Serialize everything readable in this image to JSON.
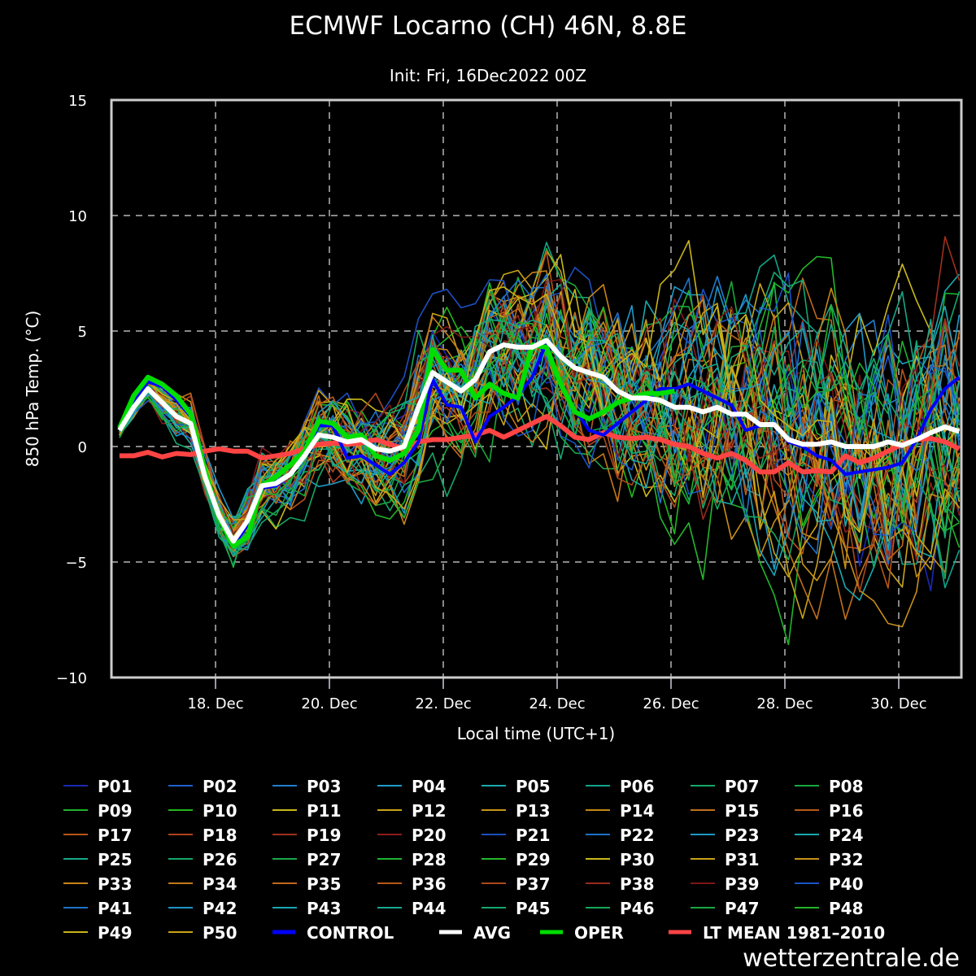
{
  "chart_data": {
    "type": "line",
    "title": "ECMWF Locarno (CH) 46N, 8.8E",
    "subtitle": "Init: Fri, 16Dec2022 00Z",
    "xlabel": "Local time (UTC+1)",
    "ylabel": "850 hPa Temp. (°C)",
    "ylim": [
      -10,
      15
    ],
    "yticks": [
      -10,
      -5,
      0,
      5,
      10,
      15
    ],
    "ytick_labels": [
      "−10",
      "−5",
      "0",
      "5",
      "10",
      "15"
    ],
    "x_start": "16 Dec 07:00",
    "x_step_hours": 6,
    "x_start_day_offset": -1.6875,
    "xticks_day_offset": [
      0,
      2,
      4,
      6,
      8,
      10,
      12
    ],
    "xtick_labels": [
      "18. Dec",
      "20. Dec",
      "22. Dec",
      "24. Dec",
      "26. Dec",
      "28. Dec",
      "30. Dec"
    ],
    "grid": true,
    "legend_position": "bottom",
    "members_count": 50,
    "member_colors": [
      "#1a2ab5",
      "#1f5fd0",
      "#1f7ed0",
      "#1e9cc9",
      "#1aa9b0",
      "#12a48a",
      "#14a868",
      "#18a83a",
      "#1fb52a",
      "#21b81c",
      "#c9b81a",
      "#c8a41a",
      "#c89616",
      "#c48818",
      "#c0701a",
      "#b85a1a",
      "#b8541a",
      "#b4401e",
      "#a0301e",
      "#8c1c1c",
      "#1d4fc0",
      "#1e72c8",
      "#1e98c8",
      "#1aa8b0",
      "#16a888",
      "#14a86c",
      "#18a84a",
      "#1db431",
      "#22b82a",
      "#c8b81a",
      "#c8a018",
      "#c89018",
      "#c88418",
      "#c47818",
      "#c06818",
      "#b85818",
      "#ac481c",
      "#982a1c",
      "#7c1616",
      "#1a54c4",
      "#1e74c8",
      "#1e94c8",
      "#1aa6b4",
      "#16a890",
      "#14a870",
      "#14a85c",
      "#18a840",
      "#22b426",
      "#c8b418",
      "#c8a418"
    ],
    "series": [
      {
        "name": "CONTROL",
        "color": "#0000ff",
        "values": [
          0.9,
          1.9,
          2.8,
          2.6,
          2.0,
          1.3,
          -1.0,
          -3.0,
          -4.3,
          -3.4,
          -1.8,
          -1.7,
          -1.2,
          -0.4,
          0.9,
          0.9,
          -0.5,
          -0.4,
          -0.8,
          -1.2,
          -0.7,
          0.2,
          2.9,
          1.8,
          1.7,
          0.2,
          1.3,
          1.7,
          2.2,
          3.0,
          4.5,
          2.6,
          1.6,
          0.7,
          0.5,
          1.0,
          1.5,
          2.0,
          2.5,
          2.5,
          2.7,
          2.4,
          2.1,
          1.8,
          0.7,
          0.9,
          1.0,
          0.2,
          0.0,
          -0.4,
          -0.6,
          -1.2,
          -1.1,
          -1.0,
          -0.9,
          -0.7,
          0.3,
          1.6,
          2.5,
          3.0
        ]
      },
      {
        "name": "AVG",
        "color": "#ffffff",
        "values": [
          0.7,
          1.7,
          2.5,
          1.9,
          1.3,
          1.0,
          -1.3,
          -3.0,
          -4.1,
          -3.2,
          -1.7,
          -1.6,
          -1.2,
          -0.4,
          0.5,
          0.4,
          0.2,
          0.3,
          -0.1,
          -0.2,
          0.0,
          1.7,
          3.2,
          2.8,
          2.4,
          2.9,
          4.1,
          4.4,
          4.3,
          4.3,
          4.6,
          3.9,
          3.4,
          3.2,
          3.0,
          2.4,
          2.1,
          2.1,
          2.0,
          1.7,
          1.7,
          1.5,
          1.7,
          1.4,
          1.4,
          0.95,
          0.95,
          0.3,
          0.1,
          0.1,
          0.2,
          0.0,
          0.0,
          0.0,
          0.2,
          0.05,
          0.3,
          0.6,
          0.85,
          0.65
        ]
      },
      {
        "name": "OPER",
        "color": "#00dd00",
        "values": [
          0.8,
          2.2,
          3.0,
          2.7,
          2.2,
          1.4,
          -1.0,
          -3.1,
          -4.3,
          -3.9,
          -1.7,
          -1.3,
          -0.8,
          -0.2,
          1.1,
          1.0,
          0.4,
          0.5,
          -0.4,
          -0.6,
          -0.3,
          0.7,
          4.2,
          3.3,
          3.3,
          2.1,
          2.7,
          2.3,
          2.1,
          4.4,
          4.3,
          2.7,
          1.5,
          1.2,
          1.5,
          1.9,
          2.1,
          2.3,
          2.3,
          2.4
        ]
      },
      {
        "name": "LT MEAN 1981-2010",
        "color": "#ff4444",
        "values": [
          -0.4,
          -0.4,
          -0.25,
          -0.45,
          -0.3,
          -0.35,
          -0.2,
          -0.1,
          -0.2,
          -0.2,
          -0.5,
          -0.4,
          -0.3,
          -0.1,
          0.1,
          0.15,
          0.1,
          0.15,
          0.3,
          0.1,
          -0.1,
          0.2,
          0.3,
          0.3,
          0.4,
          0.5,
          0.7,
          0.4,
          0.7,
          1.0,
          1.3,
          0.9,
          0.4,
          0.3,
          0.6,
          0.4,
          0.35,
          0.4,
          0.3,
          0.1,
          0.0,
          -0.3,
          -0.5,
          -0.3,
          -0.6,
          -1.1,
          -1.1,
          -0.7,
          -1.1,
          -1.05,
          -1.1,
          -0.4,
          -0.7,
          -0.5,
          -0.2,
          0.1,
          0.3,
          0.35,
          0.2,
          -0.1
        ]
      }
    ]
  },
  "legend": {
    "members": [
      "P01",
      "P02",
      "P03",
      "P04",
      "P05",
      "P06",
      "P07",
      "P08",
      "P09",
      "P10",
      "P11",
      "P12",
      "P13",
      "P14",
      "P15",
      "P16",
      "P17",
      "P18",
      "P19",
      "P20",
      "P21",
      "P22",
      "P23",
      "P24",
      "P25",
      "P26",
      "P27",
      "P28",
      "P29",
      "P30",
      "P31",
      "P32",
      "P33",
      "P34",
      "P35",
      "P36",
      "P37",
      "P38",
      "P39",
      "P40",
      "P41",
      "P42",
      "P43",
      "P44",
      "P45",
      "P46",
      "P47",
      "P48",
      "P49",
      "P50"
    ],
    "special": [
      {
        "label": "CONTROL",
        "color": "#0000ff"
      },
      {
        "label": "AVG",
        "color": "#ffffff"
      },
      {
        "label": "OPER",
        "color": "#00dd00"
      },
      {
        "label": "LT MEAN 1981–2010",
        "color": "#ff4444"
      }
    ]
  },
  "branding": "wetterzentrale.de"
}
